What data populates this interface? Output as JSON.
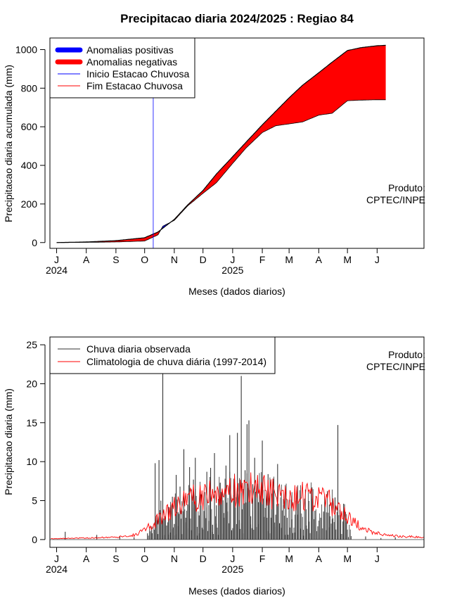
{
  "chart_data": [
    {
      "type": "area",
      "title": "Precipitacao diaria 2024/2025 : Regiao 84",
      "xlabel": "Meses (dados diarios)",
      "ylabel": "Precipitacao diaria acumulada (mm)",
      "ylim": [
        -30,
        1060
      ],
      "yticks": [
        0,
        200,
        400,
        600,
        800,
        1000
      ],
      "xlim": [
        "2024-06-24",
        "2025-07-20"
      ],
      "month_ticks": [
        {
          "date": "2024-07-01",
          "label": "J"
        },
        {
          "date": "2024-08-01",
          "label": "A"
        },
        {
          "date": "2024-09-01",
          "label": "S"
        },
        {
          "date": "2024-10-01",
          "label": "O"
        },
        {
          "date": "2024-11-01",
          "label": "N"
        },
        {
          "date": "2024-12-01",
          "label": "D"
        },
        {
          "date": "2025-01-01",
          "label": "J"
        },
        {
          "date": "2025-02-01",
          "label": "F"
        },
        {
          "date": "2025-03-01",
          "label": "M"
        },
        {
          "date": "2025-04-01",
          "label": "A"
        },
        {
          "date": "2025-05-01",
          "label": "M"
        },
        {
          "date": "2025-06-01",
          "label": "J"
        }
      ],
      "year_labels": [
        {
          "date": "2024-07-01",
          "label": "2024"
        },
        {
          "date": "2025-01-01",
          "label": "2025"
        }
      ],
      "legend": {
        "position": "top-left",
        "entries": [
          {
            "label": "Anomalias positivas",
            "color": "#0000ff"
          },
          {
            "label": "Anomalias negativas",
            "color": "#ff0000"
          },
          {
            "label": "Inicio Estacao Chuvosa",
            "color": "#0000ff"
          },
          {
            "label": "Fim Estacao Chuvosa",
            "color": "#ff0000"
          }
        ]
      },
      "season_start": "2024-10-10",
      "annotation": [
        "Produto:",
        "CPTEC/INPE"
      ],
      "series": [
        {
          "name": "Climatologia acumulada",
          "x": [
            "2024-07-01",
            "2024-08-01",
            "2024-09-01",
            "2024-10-01",
            "2024-10-15",
            "2024-11-01",
            "2024-11-15",
            "2024-12-01",
            "2024-12-15",
            "2025-01-01",
            "2025-01-15",
            "2025-02-01",
            "2025-02-15",
            "2025-03-01",
            "2025-03-15",
            "2025-04-01",
            "2025-04-15",
            "2025-05-01",
            "2025-05-15",
            "2025-06-01",
            "2025-06-10"
          ],
          "values": [
            0,
            3,
            10,
            25,
            55,
            120,
            195,
            270,
            355,
            445,
            520,
            610,
            680,
            750,
            815,
            880,
            935,
            995,
            1010,
            1020,
            1022
          ]
        },
        {
          "name": "Observado acumulado",
          "x": [
            "2024-07-01",
            "2024-08-01",
            "2024-09-01",
            "2024-10-01",
            "2024-10-15",
            "2024-10-20",
            "2024-11-01",
            "2024-11-15",
            "2024-12-01",
            "2024-12-15",
            "2025-01-01",
            "2025-01-15",
            "2025-02-01",
            "2025-02-15",
            "2025-03-01",
            "2025-03-15",
            "2025-04-01",
            "2025-04-15",
            "2025-05-01",
            "2025-05-15",
            "2025-06-01",
            "2025-06-10"
          ],
          "values": [
            0,
            1,
            3,
            8,
            40,
            85,
            115,
            190,
            255,
            310,
            410,
            490,
            570,
            605,
            615,
            625,
            660,
            670,
            735,
            738,
            740,
            740
          ]
        }
      ]
    },
    {
      "type": "bar",
      "xlabel": "Meses (dados diarios)",
      "ylabel": "Precipitacao diaria (mm)",
      "ylim": [
        -1,
        26
      ],
      "yticks": [
        0,
        5,
        10,
        15,
        20,
        25
      ],
      "xlim": [
        "2024-06-24",
        "2025-07-20"
      ],
      "month_ticks": [
        {
          "date": "2024-07-01",
          "label": "J"
        },
        {
          "date": "2024-08-01",
          "label": "A"
        },
        {
          "date": "2024-09-01",
          "label": "S"
        },
        {
          "date": "2024-10-01",
          "label": "O"
        },
        {
          "date": "2024-11-01",
          "label": "N"
        },
        {
          "date": "2024-12-01",
          "label": "D"
        },
        {
          "date": "2025-01-01",
          "label": "J"
        },
        {
          "date": "2025-02-01",
          "label": "F"
        },
        {
          "date": "2025-03-01",
          "label": "M"
        },
        {
          "date": "2025-04-01",
          "label": "A"
        },
        {
          "date": "2025-05-01",
          "label": "M"
        },
        {
          "date": "2025-06-01",
          "label": "J"
        }
      ],
      "year_labels": [
        {
          "date": "2024-07-01",
          "label": "2024"
        },
        {
          "date": "2025-01-01",
          "label": "2025"
        }
      ],
      "legend": {
        "position": "top-left",
        "entries": [
          {
            "label": "Chuva diaria observada",
            "color": "#000000"
          },
          {
            "label": "Climatologia de chuva diária (1997-2014)",
            "color": "#ff0000"
          }
        ]
      },
      "annotation": [
        "Produto:",
        "CPTEC/INPE"
      ],
      "series": [
        {
          "name": "Chuva diaria observada",
          "x": [
            "2024-07-10",
            "2024-08-12",
            "2024-09-05",
            "2024-09-20",
            "2024-10-04",
            "2024-10-08",
            "2024-10-12",
            "2024-10-14",
            "2024-10-16",
            "2024-10-18",
            "2024-10-20",
            "2024-10-22",
            "2024-10-24",
            "2024-10-26",
            "2024-10-28",
            "2024-10-30",
            "2024-11-01",
            "2024-11-03",
            "2024-11-05",
            "2024-11-07",
            "2024-11-09",
            "2024-11-11",
            "2024-11-13",
            "2024-11-15",
            "2024-11-17",
            "2024-11-19",
            "2024-11-21",
            "2024-11-23",
            "2024-11-25",
            "2024-11-27",
            "2024-11-29",
            "2024-12-01",
            "2024-12-03",
            "2024-12-05",
            "2024-12-07",
            "2024-12-09",
            "2024-12-11",
            "2024-12-13",
            "2024-12-15",
            "2024-12-17",
            "2024-12-19",
            "2024-12-21",
            "2024-12-23",
            "2024-12-25",
            "2024-12-27",
            "2024-12-29",
            "2024-12-31",
            "2025-01-02",
            "2025-01-04",
            "2025-01-06",
            "2025-01-08",
            "2025-01-10",
            "2025-01-12",
            "2025-01-14",
            "2025-01-16",
            "2025-01-18",
            "2025-01-20",
            "2025-01-22",
            "2025-01-24",
            "2025-01-26",
            "2025-01-28",
            "2025-01-30",
            "2025-02-01",
            "2025-02-03",
            "2025-02-05",
            "2025-02-07",
            "2025-02-09",
            "2025-02-11",
            "2025-02-13",
            "2025-02-15",
            "2025-02-17",
            "2025-02-19",
            "2025-02-21",
            "2025-02-23",
            "2025-02-25",
            "2025-02-27",
            "2025-03-01",
            "2025-03-04",
            "2025-03-07",
            "2025-03-10",
            "2025-03-13",
            "2025-03-16",
            "2025-03-19",
            "2025-03-22",
            "2025-03-25",
            "2025-03-28",
            "2025-03-31",
            "2025-04-03",
            "2025-04-06",
            "2025-04-09",
            "2025-04-12",
            "2025-04-15",
            "2025-04-18",
            "2025-04-21",
            "2025-04-24",
            "2025-04-27",
            "2025-04-30",
            "2025-05-20",
            "2025-06-05",
            "2025-06-20"
          ],
          "values": [
            1,
            0.6,
            0.4,
            0.3,
            0.8,
            1.5,
            9.8,
            2.5,
            10.2,
            5,
            21.5,
            3,
            1.8,
            4.2,
            0.9,
            5.5,
            2,
            8.3,
            3.5,
            6.8,
            0.7,
            11.6,
            2.8,
            4.5,
            9.3,
            1.2,
            7.7,
            10.5,
            0.5,
            3.1,
            5.8,
            1.3,
            6.1,
            8.7,
            2.4,
            9.2,
            1.9,
            11.1,
            4.4,
            0.6,
            7.3,
            6.4,
            2.8,
            9.5,
            3.6,
            13.4,
            1.2,
            5.7,
            4.1,
            13.7,
            2.5,
            21,
            6.5,
            8.9,
            14.8,
            15.3,
            3,
            7.1,
            10.5,
            1.6,
            4.8,
            5.3,
            12.7,
            2.9,
            6.3,
            8.4,
            0.8,
            5.9,
            7.8,
            3.2,
            9.7,
            2.1,
            1.5,
            4.4,
            0.6,
            2.8,
            5.1,
            2.6,
            0.9,
            3.2,
            1.4,
            0.5,
            1.8,
            2.3,
            6.7,
            3.7,
            1.7,
            2.8,
            3.6,
            1.2,
            4.5,
            2.6,
            5.4,
            14.7,
            3.1,
            4.6,
            2.2,
            0.4,
            0.2,
            0.3
          ]
        },
        {
          "name": "Climatologia de chuva diária (1997-2014)",
          "x": [
            "2024-06-25",
            "2024-08-01",
            "2024-09-01",
            "2024-09-20",
            "2024-10-01",
            "2024-10-15",
            "2024-11-01",
            "2024-11-15",
            "2024-12-01",
            "2024-12-15",
            "2025-01-01",
            "2025-01-15",
            "2025-02-01",
            "2025-02-15",
            "2025-03-01",
            "2025-03-15",
            "2025-04-01",
            "2025-04-15",
            "2025-05-01",
            "2025-05-15",
            "2025-06-01",
            "2025-06-15",
            "2025-07-01",
            "2025-07-20"
          ],
          "values": [
            0.1,
            0.2,
            0.3,
            0.6,
            1.2,
            2.5,
            4.2,
            5,
            5.6,
            6,
            6.3,
            6.5,
            6.2,
            5.8,
            5.6,
            5.5,
            5.3,
            4.6,
            3,
            1.6,
            0.8,
            0.5,
            0.4,
            0.3
          ]
        }
      ]
    }
  ]
}
